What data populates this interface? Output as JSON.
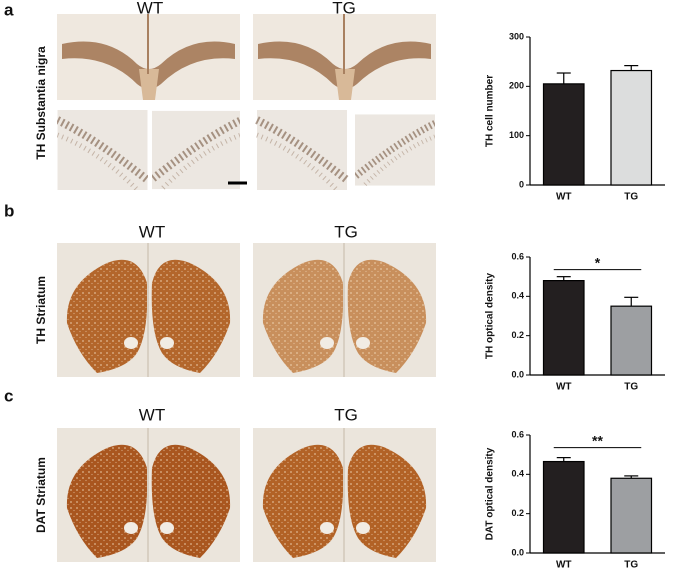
{
  "panels": [
    {
      "letter": "a",
      "row_label": "TH Substantia nigra",
      "image_labels": [
        "WT",
        "TG"
      ]
    },
    {
      "letter": "b",
      "row_label": "TH Striatum",
      "image_labels": [
        "WT",
        "TG"
      ]
    },
    {
      "letter": "c",
      "row_label": "DAT Striatum",
      "image_labels": [
        "WT",
        "TG"
      ]
    }
  ],
  "chart_data": [
    {
      "type": "bar",
      "y_label": "TH cell number",
      "categories": [
        "WT",
        "TG"
      ],
      "values": [
        205,
        232
      ],
      "errors": [
        22,
        10
      ],
      "colors": [
        "#231f20",
        "#dcdddd"
      ],
      "ylim": [
        0,
        300
      ],
      "yticks": [
        0,
        100,
        200,
        300
      ]
    },
    {
      "type": "bar",
      "y_label": "TH optical density",
      "categories": [
        "WT",
        "TG"
      ],
      "values": [
        0.48,
        0.35
      ],
      "errors": [
        0.02,
        0.045
      ],
      "colors": [
        "#231f20",
        "#9d9fa2"
      ],
      "ylim": [
        0,
        0.6
      ],
      "yticks": [
        {
          "value": 0,
          "label": "0.0"
        },
        0.2,
        0.4,
        0.6
      ],
      "significance": "*"
    },
    {
      "type": "bar",
      "y_label": "DAT optical density",
      "categories": [
        "WT",
        "TG"
      ],
      "values": [
        0.465,
        0.38
      ],
      "errors": [
        0.02,
        0.012
      ],
      "colors": [
        "#231f20",
        "#9d9fa2"
      ],
      "ylim": [
        0,
        0.6
      ],
      "yticks": [
        {
          "value": 0,
          "label": "0.0"
        },
        0.2,
        0.4,
        0.6
      ],
      "significance": "**"
    }
  ]
}
